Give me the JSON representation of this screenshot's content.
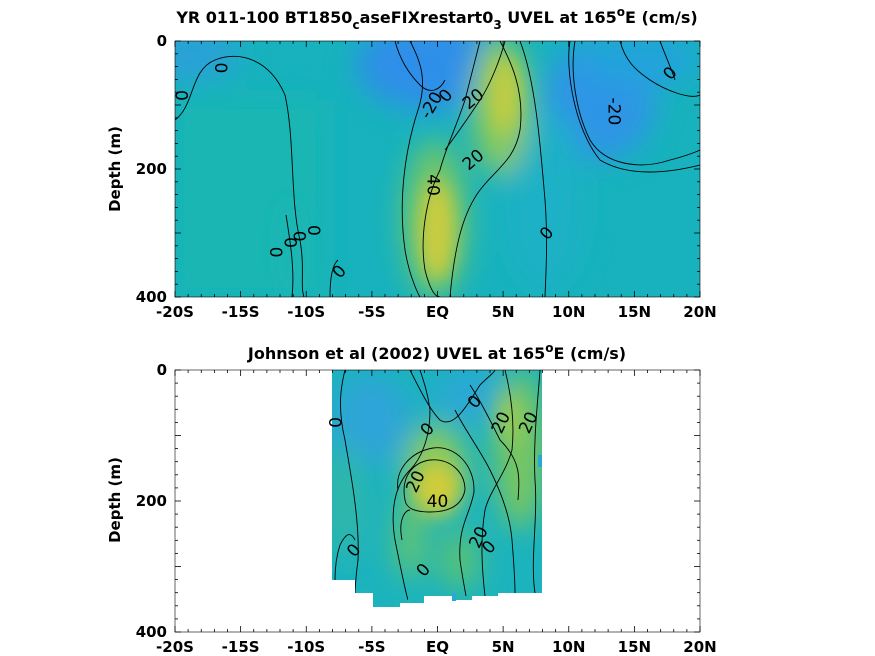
{
  "chart_data": [
    {
      "type": "heatmap",
      "title": {
        "prefix": "YR 011-100 BT1850",
        "sub1": "c",
        "mid": "aseFIXrestart0",
        "sub2": "3",
        "mid2": " UVEL at 165",
        "sup": "o",
        "suffix": "E (cm/s)"
      },
      "ylabel": "Depth (m)",
      "xlim": [
        -20,
        20
      ],
      "ylim": [
        0,
        400
      ],
      "x_ticks": [
        -20,
        -15,
        -10,
        -5,
        0,
        5,
        10,
        15,
        20
      ],
      "x_tick_labels": [
        "-20S",
        "-15S",
        "-10S",
        "-5S",
        "EQ",
        "5N",
        "10N",
        "15N",
        "20N"
      ],
      "y_ticks": [
        0,
        200,
        400
      ],
      "y_tick_labels": [
        "0",
        "200",
        "400"
      ],
      "colormap": [
        "#3a8ee6",
        "#1aa7d6",
        "#12b5b8",
        "#3fc08c",
        "#8cc860",
        "#d4cb3c"
      ],
      "features": [
        {
          "kind": "core",
          "lat": 0.5,
          "depth": 230,
          "value": 40
        },
        {
          "kind": "core",
          "lat": 5,
          "depth": 100,
          "value": 30
        },
        {
          "kind": "core",
          "lat": -1,
          "depth": 40,
          "value": -25
        },
        {
          "kind": "core",
          "lat": 12,
          "depth": 100,
          "value": -25
        }
      ],
      "contour_labels": [
        {
          "text": "0",
          "lat": -19.5,
          "depth": 85
        },
        {
          "text": "0",
          "lat": -16.5,
          "depth": 42
        },
        {
          "text": "-20",
          "lat": -0.5,
          "depth": 100
        },
        {
          "text": "0",
          "lat": 0.6,
          "depth": 85
        },
        {
          "text": "20",
          "lat": 2.7,
          "depth": 90
        },
        {
          "text": "20",
          "lat": 2.7,
          "depth": 185
        },
        {
          "text": "40",
          "lat": -0.3,
          "depth": 225
        },
        {
          "text": "0",
          "lat": 8.3,
          "depth": 300
        },
        {
          "text": "0",
          "lat": 17.7,
          "depth": 50
        },
        {
          "text": "-20",
          "lat": 13.5,
          "depth": 110
        },
        {
          "text": "0",
          "lat": -12.3,
          "depth": 330
        },
        {
          "text": "0",
          "lat": -11.2,
          "depth": 315
        },
        {
          "text": "0",
          "lat": -10.5,
          "depth": 305
        },
        {
          "text": "0",
          "lat": -9.4,
          "depth": 296
        },
        {
          "text": "0",
          "lat": -7.5,
          "depth": 360
        }
      ]
    },
    {
      "type": "heatmap",
      "title": {
        "prefix": "Johnson et al (2002) UVEL at 165",
        "sup": "o",
        "suffix": "E (cm/s)"
      },
      "ylabel": "Depth (m)",
      "xlim": [
        -20,
        20
      ],
      "ylim": [
        0,
        400
      ],
      "data_lat_range": [
        -8,
        8
      ],
      "x_ticks": [
        -20,
        -15,
        -10,
        -5,
        0,
        5,
        10,
        15,
        20
      ],
      "x_tick_labels": [
        "-20S",
        "-15S",
        "-10S",
        "-5S",
        "EQ",
        "5N",
        "10N",
        "15N",
        "20N"
      ],
      "y_ticks": [
        0,
        200,
        400
      ],
      "y_tick_labels": [
        "0",
        "200",
        "400"
      ],
      "colormap": [
        "#3a8ee6",
        "#1aa7d6",
        "#12b5b8",
        "#3fc08c",
        "#8cc860",
        "#d4cb3c"
      ],
      "features": [
        {
          "kind": "core",
          "lat": 0,
          "depth": 190,
          "value": 45
        },
        {
          "kind": "core",
          "lat": 4.5,
          "depth": 110,
          "value": 25
        },
        {
          "kind": "core",
          "lat": -3.5,
          "depth": 80,
          "value": 15
        }
      ],
      "contour_labels": [
        {
          "text": "0",
          "lat": -7.8,
          "depth": 80
        },
        {
          "text": "0",
          "lat": -0.8,
          "depth": 90
        },
        {
          "text": "0",
          "lat": 2.8,
          "depth": 48
        },
        {
          "text": "20",
          "lat": 4.8,
          "depth": 80
        },
        {
          "text": "20",
          "lat": 6.9,
          "depth": 80
        },
        {
          "text": "20",
          "lat": -1.7,
          "depth": 170
        },
        {
          "text": "40",
          "lat": 0,
          "depth": 200
        },
        {
          "text": "20",
          "lat": 3.1,
          "depth": 255
        },
        {
          "text": "0",
          "lat": 3.9,
          "depth": 270
        },
        {
          "text": "0",
          "lat": -6.4,
          "depth": 275
        },
        {
          "text": "0",
          "lat": -1.1,
          "depth": 305
        }
      ]
    }
  ]
}
